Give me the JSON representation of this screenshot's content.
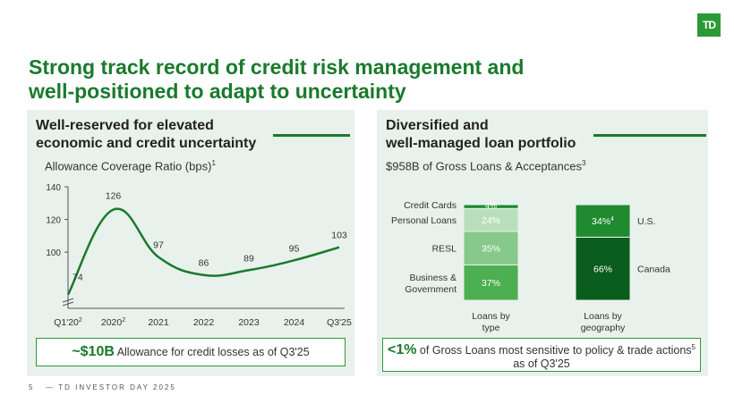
{
  "logo": {
    "text": "TD"
  },
  "header": {
    "title_line1": "Strong track record of credit risk management and",
    "title_line2": "well-positioned to adapt to uncertainty"
  },
  "left_panel": {
    "title_line1": "Well-reserved for elevated",
    "title_line2": "economic and credit uncertainty",
    "subtitle": "Allowance Coverage Ratio (bps)",
    "subtitle_sup": "1",
    "callout_big": "~$10B",
    "callout_text": " Allowance for credit losses as of Q3'25"
  },
  "right_panel": {
    "title_line1": "Diversified and",
    "title_line2": "well-managed loan portfolio",
    "subtitle": "$958B of Gross Loans & Acceptances",
    "subtitle_sup": "3",
    "callout_big": "<1%",
    "callout_text": " of Gross Loans most sensitive to policy & trade actions",
    "callout_sup": "5",
    "callout_line2": "as of Q3'25"
  },
  "chart_data": [
    {
      "type": "line",
      "title": "Allowance Coverage Ratio (bps)",
      "categories": [
        "Q1'20",
        "2020",
        "2021",
        "2022",
        "2023",
        "2024",
        "Q3'25"
      ],
      "category_sups": [
        "2",
        "2",
        "",
        "",
        "",
        "",
        ""
      ],
      "values": [
        74,
        126,
        97,
        86,
        89,
        95,
        103
      ],
      "yticks": [
        100,
        120,
        140
      ],
      "ylim": [
        70,
        140
      ],
      "axis_break": true
    },
    {
      "type": "bar",
      "title": "Loans by type",
      "stacked": true,
      "xlabel_line1": "Loans by",
      "xlabel_line2": "type",
      "segments": [
        {
          "name": "Business & Government",
          "name_line1": "Business &",
          "name_line2": "Government",
          "value": 37,
          "label": "37%",
          "color": "#4caf50"
        },
        {
          "name": "RESL",
          "value": 35,
          "label": "35%",
          "color": "#86c98a"
        },
        {
          "name": "Personal Loans",
          "value": 24,
          "label": "24%",
          "color": "#b9dfba"
        },
        {
          "name": "Credit Cards",
          "value": 4,
          "label": "4%",
          "color": "#1a8a2e"
        }
      ]
    },
    {
      "type": "bar",
      "title": "Loans by geography",
      "stacked": true,
      "xlabel_line1": "Loans by",
      "xlabel_line2": "geography",
      "segments": [
        {
          "name": "Canada",
          "value": 66,
          "label": "66%",
          "sup": "",
          "color": "#0b5d1e"
        },
        {
          "name": "U.S.",
          "value": 34,
          "label": "34%",
          "sup": "4",
          "color": "#1f8a30"
        }
      ]
    }
  ],
  "footer": {
    "page_number": "5",
    "text": "— TD INVESTOR DAY 2025"
  }
}
